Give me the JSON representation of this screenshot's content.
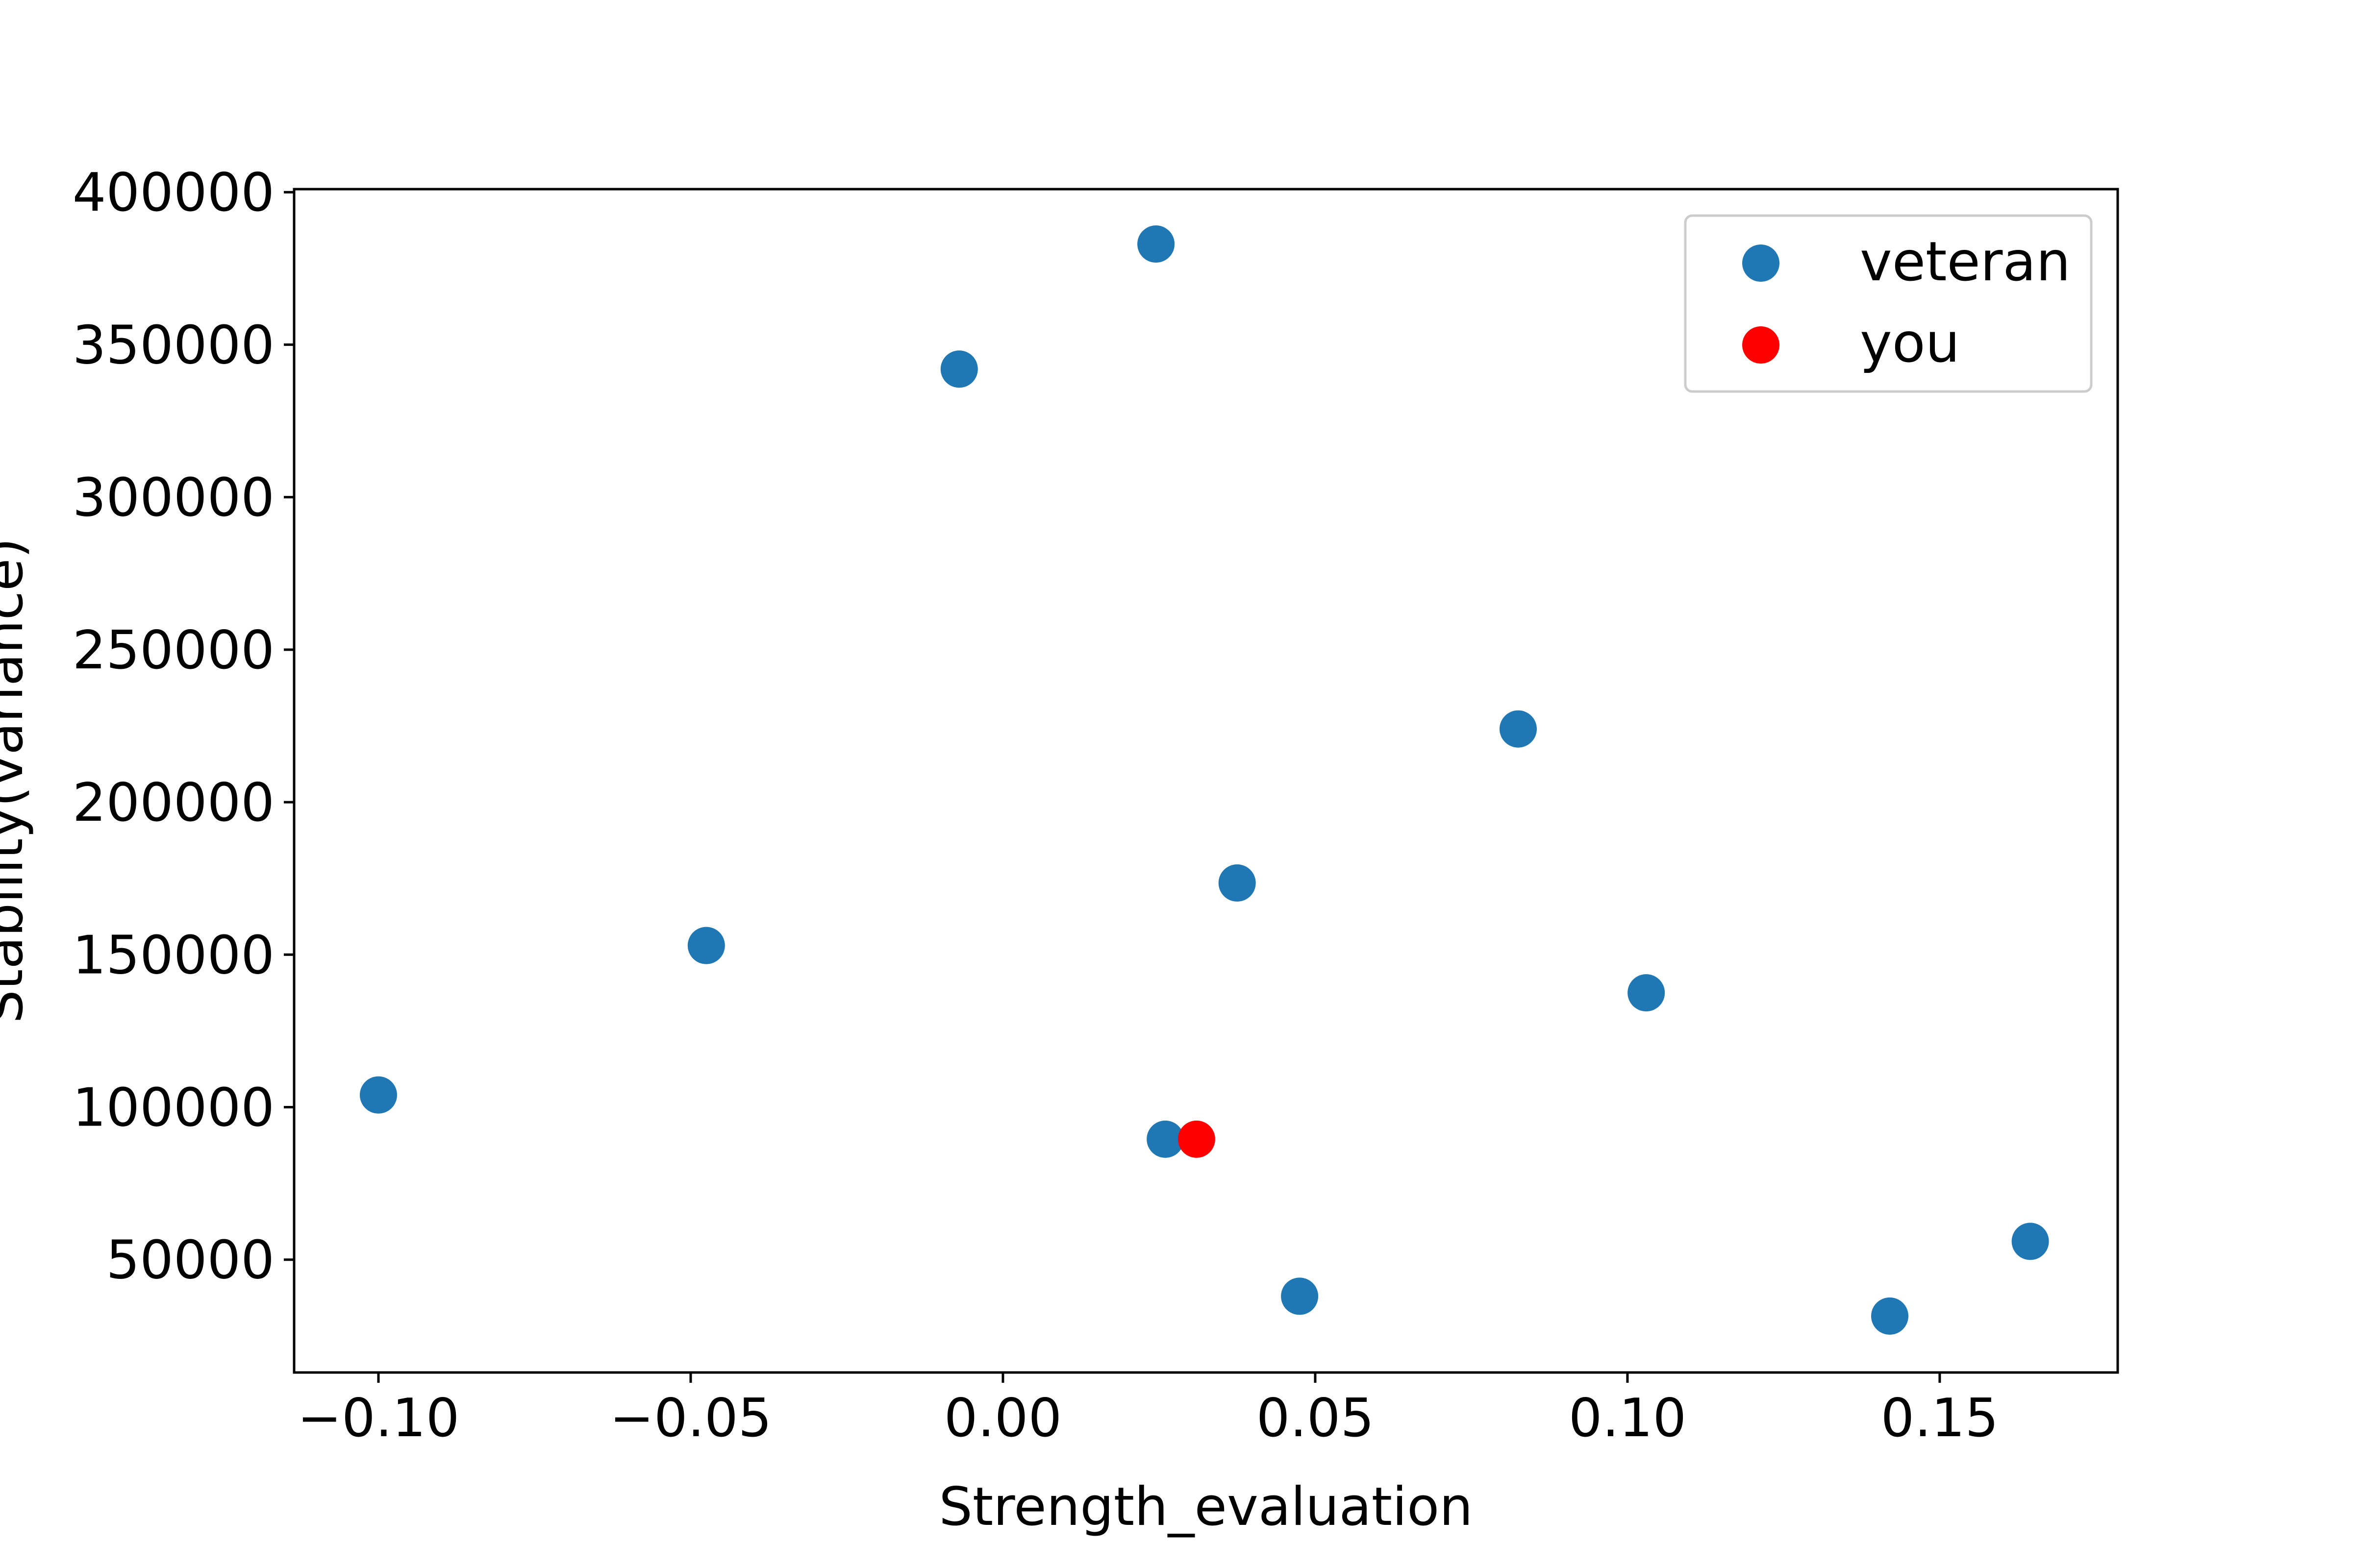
{
  "chart_data": {
    "type": "scatter",
    "xlabel": "Strength_evaluation",
    "ylabel": "Stability(variance)",
    "xlim": [
      -0.1135,
      0.1785
    ],
    "ylim": [
      13000,
      401000
    ],
    "x_ticks": [
      -0.1,
      -0.05,
      0.0,
      0.05,
      0.1,
      0.15
    ],
    "x_tick_labels": [
      "−0.10",
      "−0.05",
      "0.00",
      "0.05",
      "0.10",
      "0.15"
    ],
    "y_ticks": [
      50000,
      100000,
      150000,
      200000,
      250000,
      300000,
      350000,
      400000
    ],
    "y_tick_labels": [
      "50000",
      "100000",
      "150000",
      "200000",
      "250000",
      "300000",
      "350000",
      "400000"
    ],
    "grid": false,
    "legend_position": "top-right",
    "series": [
      {
        "name": "veteran",
        "color": "#1f77b4",
        "points": [
          {
            "x": 0.0245,
            "y": 383000
          },
          {
            "x": -0.007,
            "y": 342000
          },
          {
            "x": 0.0825,
            "y": 224000
          },
          {
            "x": 0.0375,
            "y": 173500
          },
          {
            "x": -0.0475,
            "y": 153000
          },
          {
            "x": 0.103,
            "y": 137500
          },
          {
            "x": -0.1,
            "y": 104000
          },
          {
            "x": 0.026,
            "y": 89500
          },
          {
            "x": 0.0475,
            "y": 38000
          },
          {
            "x": 0.142,
            "y": 31500
          },
          {
            "x": 0.1645,
            "y": 56000
          }
        ]
      },
      {
        "name": "you",
        "color": "#ff0000",
        "points": [
          {
            "x": 0.031,
            "y": 89500
          }
        ]
      }
    ]
  }
}
